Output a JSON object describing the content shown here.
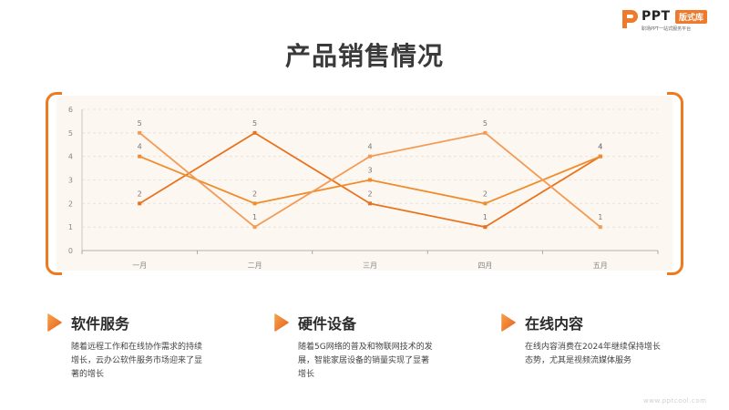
{
  "logo": {
    "brand": "PPT",
    "badge": "版式库",
    "tagline": "职场PPT一站式服务平台",
    "accent": "#f07a2b"
  },
  "page": {
    "title": "产品销售情况"
  },
  "chart_data": {
    "type": "line",
    "title": "",
    "xlabel": "",
    "ylabel": "",
    "categories": [
      "一月",
      "二月",
      "三月",
      "四月",
      "五月"
    ],
    "ylim": [
      0,
      6
    ],
    "yticks": [
      0,
      1,
      2,
      3,
      4,
      5,
      6
    ],
    "grid": true,
    "legend": "none",
    "series": [
      {
        "values": [
          2,
          5,
          2,
          1,
          4
        ],
        "color": "#e8731e"
      },
      {
        "values": [
          4,
          2,
          3,
          2,
          4
        ],
        "color": "#ef8d2c"
      },
      {
        "values": [
          5,
          1,
          4,
          5,
          1
        ],
        "color": "#f39b55"
      }
    ],
    "label_colors": "#777777"
  },
  "cards": [
    {
      "title": "软件服务",
      "text": "随着远程工作和在线协作需求的持续增长，云办公软件服务市场迎来了显著的增长",
      "icon": "play-arrow-icon"
    },
    {
      "title": "硬件设备",
      "text": "随着5G网络的普及和物联网技术的发展，智能家居设备的销量实现了显著增长",
      "icon": "play-arrow-icon"
    },
    {
      "title": "在线内容",
      "text": "在线内容消费在2024年继续保持增长态势，尤其是视频流媒体服务",
      "icon": "play-arrow-icon"
    }
  ],
  "footer": {
    "url": "www.pptcool.com"
  }
}
